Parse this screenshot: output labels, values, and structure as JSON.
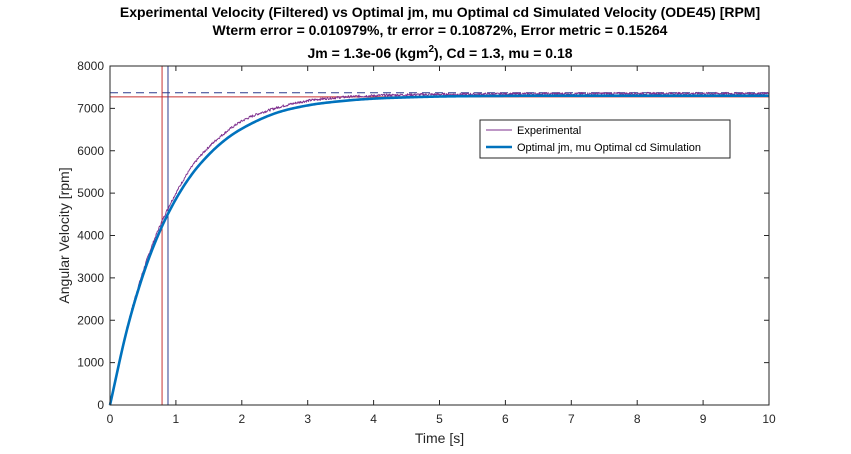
{
  "chart_data": {
    "type": "line",
    "title_lines": [
      "Experimental Velocity (Filtered) vs Optimal jm, mu Optimal cd Simulated Velocity (ODE45) [RPM]",
      "Wterm error = 0.010979%, tr error = 0.10872%, Error metric = 0.15264"
    ],
    "title_line3": {
      "prefix": "Jm = 1.3e-06 (kgm",
      "sup": "2",
      "suffix": "), Cd = 1.3, mu = 0.18"
    },
    "xlabel": "Time [s]",
    "ylabel": "Angular Velocity [rpm]",
    "xlim": [
      0,
      10
    ],
    "ylim": [
      0,
      8000
    ],
    "xticks": [
      0,
      1,
      2,
      3,
      4,
      5,
      6,
      7,
      8,
      9,
      10
    ],
    "yticks": [
      0,
      1000,
      2000,
      3000,
      4000,
      5000,
      6000,
      7000,
      8000
    ],
    "grid": false,
    "legend_position": "upper-right inside",
    "series": [
      {
        "name": "Experimental",
        "color": "#7E2F8E",
        "linewidth": "thin",
        "noisy": true,
        "x": [
          0,
          0.25,
          0.5,
          0.75,
          1.0,
          1.25,
          1.5,
          1.75,
          2.0,
          2.5,
          3.0,
          3.5,
          4.0,
          4.5,
          5.0,
          5.5,
          6.0,
          6.5,
          7.0,
          7.5,
          8.0,
          8.5,
          9.0,
          9.5,
          10.0
        ],
        "y": [
          0,
          1780,
          3150,
          4200,
          5000,
          5640,
          6090,
          6430,
          6700,
          7000,
          7180,
          7260,
          7300,
          7320,
          7330,
          7335,
          7340,
          7345,
          7345,
          7350,
          7350,
          7350,
          7350,
          7350,
          7350
        ]
      },
      {
        "name": "Optimal jm, mu Optimal cd Simulation",
        "color": "#0072BD",
        "linewidth": "thick",
        "noisy": false,
        "x": [
          0,
          0.25,
          0.5,
          0.75,
          1.0,
          1.25,
          1.5,
          1.75,
          2.0,
          2.5,
          3.0,
          3.5,
          4.0,
          4.5,
          5.0,
          5.5,
          6.0,
          6.5,
          7.0,
          7.5,
          8.0,
          8.5,
          9.0,
          9.5,
          10.0
        ],
        "y": [
          0,
          1730,
          3060,
          4080,
          4860,
          5460,
          5910,
          6260,
          6520,
          6880,
          7070,
          7170,
          7230,
          7260,
          7280,
          7290,
          7295,
          7300,
          7300,
          7300,
          7300,
          7300,
          7300,
          7300,
          7300
        ]
      }
    ],
    "reference_lines": [
      {
        "orientation": "horizontal",
        "value": 7370,
        "color": "#2B3C8E",
        "style": "dashed"
      },
      {
        "orientation": "horizontal",
        "value": 7270,
        "color": "#C83232",
        "style": "solid"
      },
      {
        "orientation": "vertical",
        "value": 0.79,
        "color": "#C83232",
        "style": "solid"
      },
      {
        "orientation": "vertical",
        "value": 0.88,
        "color": "#2B3C8E",
        "style": "solid"
      }
    ]
  }
}
